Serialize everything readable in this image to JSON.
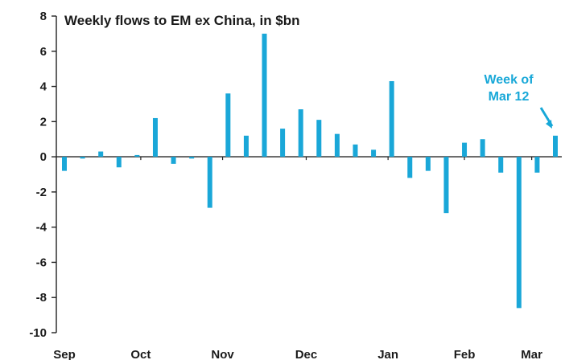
{
  "chart_data": {
    "type": "bar",
    "title": "Weekly flows to EM ex China, in $bn",
    "xlabel": "",
    "ylabel": "",
    "ylim": [
      -10,
      8
    ],
    "yticks": [
      8,
      6,
      4,
      2,
      0,
      -2,
      -4,
      -6,
      -8,
      -10
    ],
    "month_labels": [
      {
        "label": "Sep",
        "week": 0
      },
      {
        "label": "Oct",
        "week": 4.2
      },
      {
        "label": "Nov",
        "week": 8.7
      },
      {
        "label": "Dec",
        "week": 13.3
      },
      {
        "label": "Jan",
        "week": 17.8
      },
      {
        "label": "Feb",
        "week": 22
      },
      {
        "label": "Mar",
        "week": 25.7
      }
    ],
    "series": [
      {
        "color": "#1aa7d8",
        "values": [
          -0.8,
          -0.1,
          0.3,
          -0.6,
          0.1,
          2.2,
          -0.4,
          -0.1,
          -2.9,
          3.6,
          1.2,
          7.0,
          1.6,
          2.7,
          2.1,
          1.3,
          0.7,
          0.4,
          4.3,
          -1.2,
          -0.8,
          -3.2,
          0.8,
          1.0,
          -0.9,
          -8.6,
          -0.9,
          1.2
        ]
      }
    ],
    "annotation": {
      "lines": [
        "Week of",
        "Mar 12"
      ],
      "target_index": 27,
      "color": "#18a8d8"
    },
    "grid": false,
    "legend": "none"
  }
}
